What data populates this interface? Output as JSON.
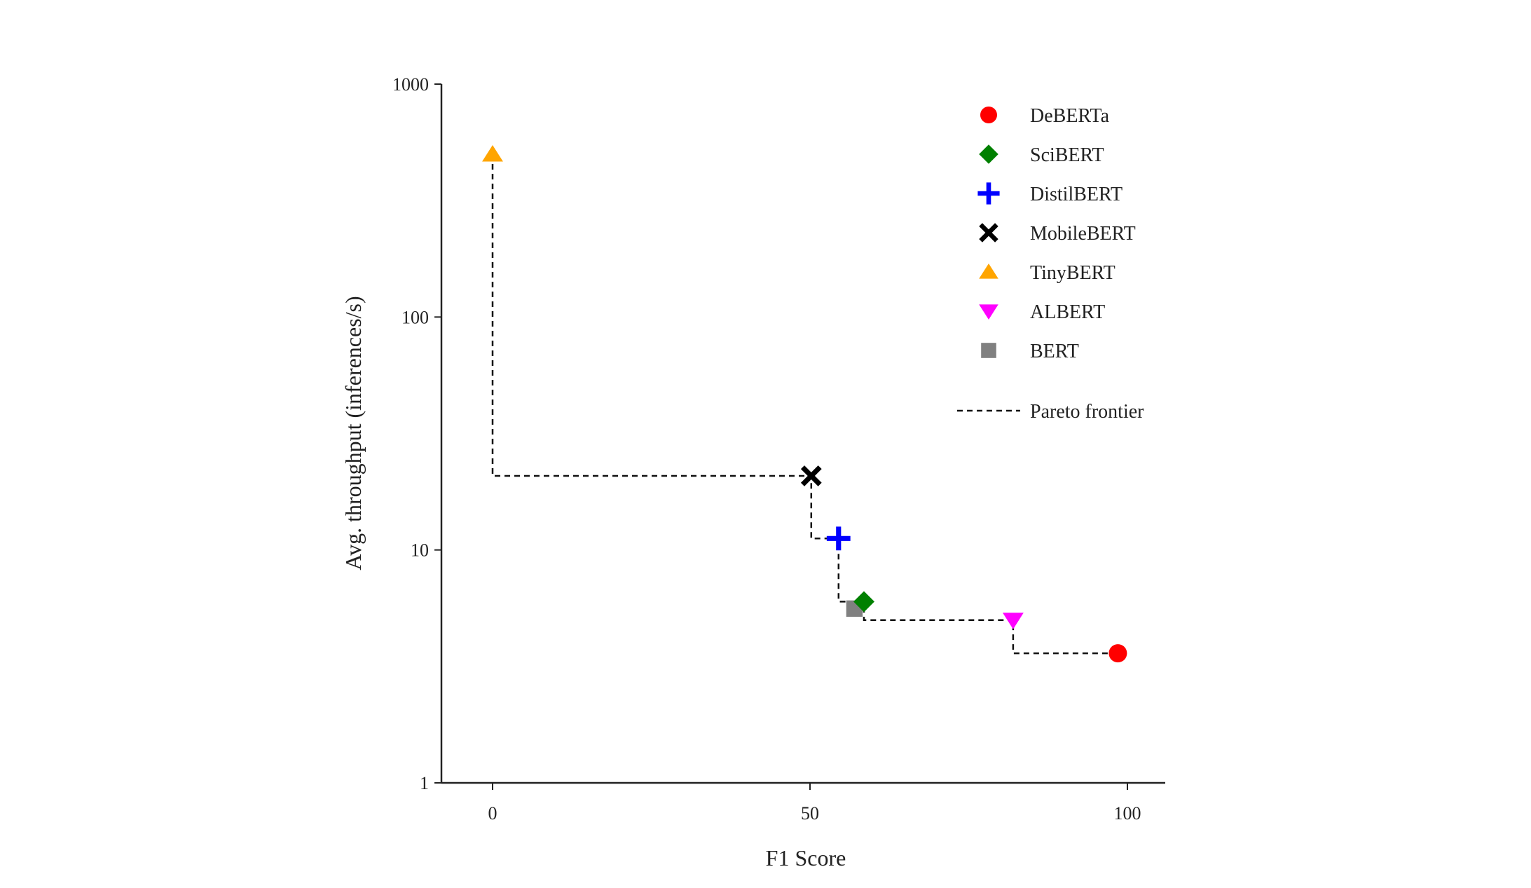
{
  "chart_data": {
    "type": "scatter",
    "title": "",
    "xlabel": "F1 Score",
    "ylabel": "Avg. throughput (inferences/s)",
    "x_ticks": [
      "0",
      "50",
      "100"
    ],
    "y_ticks": [
      "1",
      "10",
      "100",
      "1000"
    ],
    "xlim": [
      -8,
      106
    ],
    "ylim": [
      1,
      1000
    ],
    "y_scale": "log",
    "grid": false,
    "legend_position": "top-right",
    "series": [
      {
        "name": "DeBERTa",
        "marker": "circle",
        "color": "#ff0000",
        "x": 98.5,
        "y": 3.6
      },
      {
        "name": "SciBERT",
        "marker": "diamond",
        "color": "#008000",
        "x": 58.5,
        "y": 6.0
      },
      {
        "name": "DistilBERT",
        "marker": "plus",
        "color": "#0000ff",
        "x": 54.5,
        "y": 11.2
      },
      {
        "name": "MobileBERT",
        "marker": "x",
        "color": "#000000",
        "x": 50.2,
        "y": 20.8
      },
      {
        "name": "TinyBERT",
        "marker": "triangle-up",
        "color": "#ffa500",
        "x": 0,
        "y": 500
      },
      {
        "name": "ALBERT",
        "marker": "triangle-down",
        "color": "#ff00ff",
        "x": 82,
        "y": 5.0
      },
      {
        "name": "BERT",
        "marker": "square",
        "color": "#808080",
        "x": 57,
        "y": 5.6
      }
    ],
    "pareto_frontier": {
      "name": "Pareto frontier",
      "points": [
        [
          0,
          500
        ],
        [
          0,
          20.8
        ],
        [
          50.2,
          20.8
        ],
        [
          50.2,
          11.2
        ],
        [
          54.5,
          11.2
        ],
        [
          54.5,
          6.0
        ],
        [
          58.5,
          6.0
        ],
        [
          58.5,
          5.0
        ],
        [
          82,
          5.0
        ],
        [
          82,
          3.6
        ],
        [
          98.5,
          3.6
        ]
      ]
    }
  }
}
